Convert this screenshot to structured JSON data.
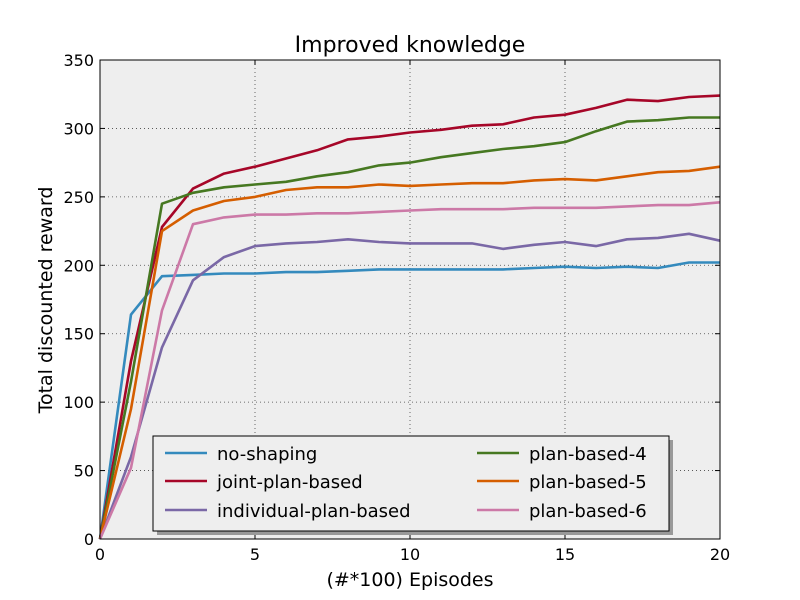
{
  "chart_data": {
    "type": "line",
    "title": "Improved knowledge",
    "xlabel": "(#*100) Episodes",
    "ylabel": "Total discounted reward",
    "xlim": [
      0,
      20
    ],
    "ylim": [
      0,
      350
    ],
    "xticks": [
      0,
      5,
      10,
      15,
      20
    ],
    "yticks": [
      0,
      50,
      100,
      150,
      200,
      250,
      300,
      350
    ],
    "grid": true,
    "legend_position": "lower-center",
    "x": [
      0,
      1,
      2,
      3,
      4,
      5,
      6,
      7,
      8,
      9,
      10,
      11,
      12,
      13,
      14,
      15,
      16,
      17,
      18,
      19,
      20
    ],
    "series": [
      {
        "name": "no-shaping",
        "color": "#348abd",
        "values": [
          0,
          164,
          192,
          193,
          194,
          194,
          195,
          195,
          196,
          197,
          197,
          197,
          197,
          197,
          198,
          199,
          198,
          199,
          198,
          202,
          202
        ]
      },
      {
        "name": "joint-plan-based",
        "color": "#a60628",
        "values": [
          0,
          130,
          228,
          256,
          267,
          272,
          278,
          284,
          292,
          294,
          297,
          299,
          302,
          303,
          308,
          310,
          315,
          321,
          320,
          323,
          324
        ]
      },
      {
        "name": "individual-plan-based",
        "color": "#7a68a6",
        "values": [
          0,
          60,
          140,
          189,
          206,
          214,
          216,
          217,
          219,
          217,
          216,
          216,
          216,
          212,
          215,
          217,
          214,
          219,
          220,
          223,
          218
        ]
      },
      {
        "name": "plan-based-4",
        "color": "#467821",
        "values": [
          0,
          115,
          245,
          253,
          257,
          259,
          261,
          265,
          268,
          273,
          275,
          279,
          282,
          285,
          287,
          290,
          298,
          305,
          306,
          308,
          308
        ]
      },
      {
        "name": "plan-based-5",
        "color": "#d55e00",
        "values": [
          0,
          95,
          225,
          240,
          247,
          250,
          255,
          257,
          257,
          259,
          258,
          259,
          260,
          260,
          262,
          263,
          262,
          265,
          268,
          269,
          272
        ]
      },
      {
        "name": "plan-based-6",
        "color": "#cc79a7",
        "values": [
          0,
          52,
          167,
          230,
          235,
          237,
          237,
          238,
          238,
          239,
          240,
          241,
          241,
          241,
          242,
          242,
          242,
          243,
          244,
          244,
          246
        ]
      }
    ]
  }
}
